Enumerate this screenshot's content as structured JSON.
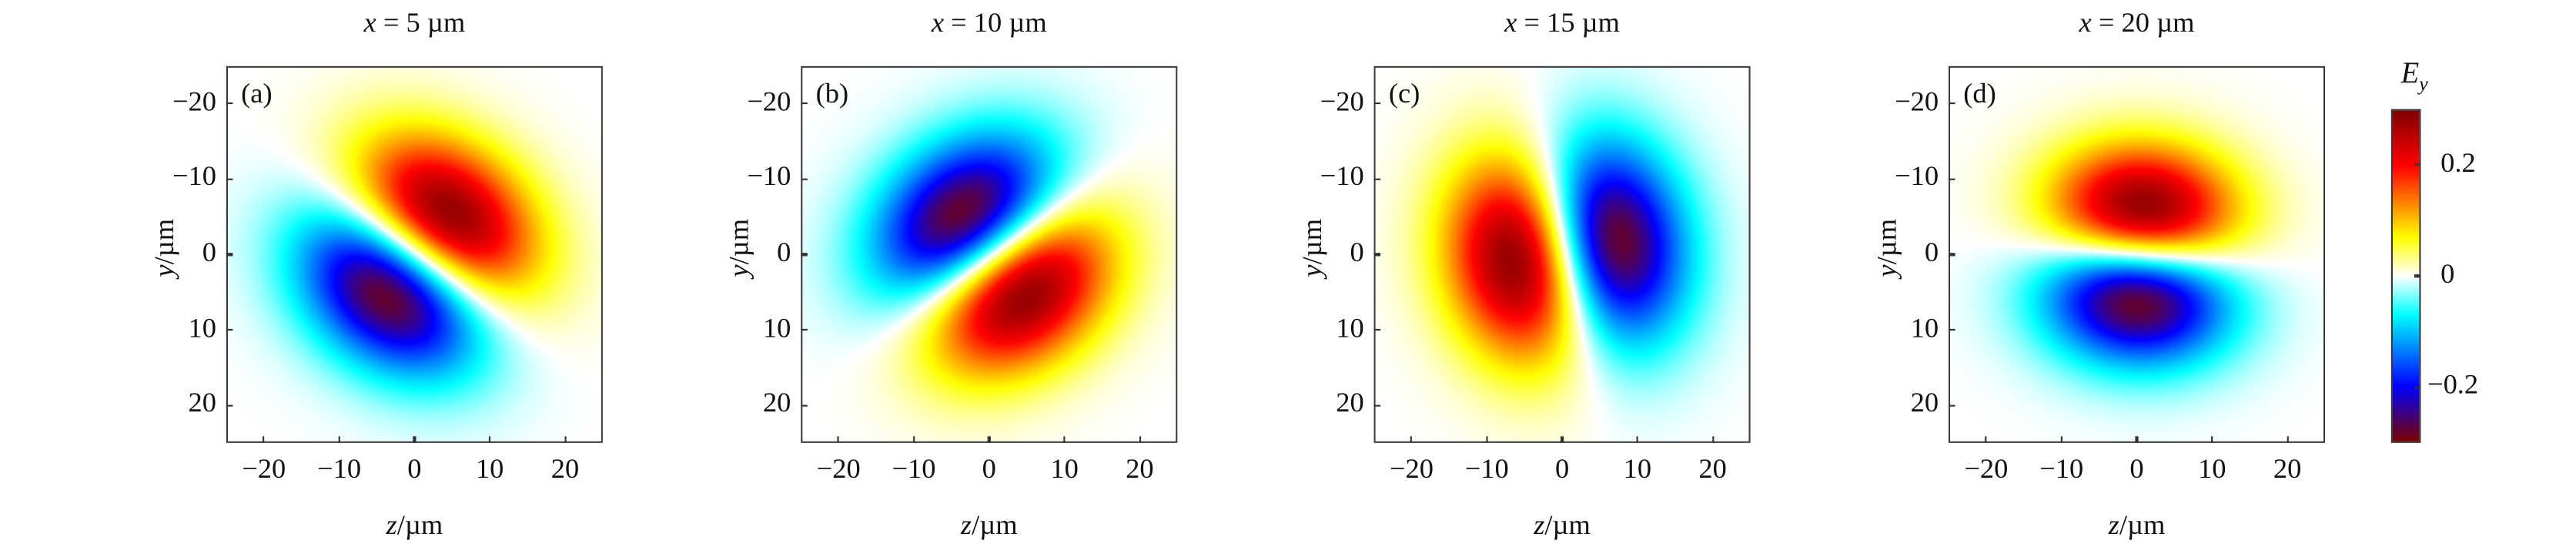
{
  "chart_data": {
    "type": "heatmap",
    "colorbar": {
      "label_var": "E",
      "label_sub": "y",
      "range": [
        -0.3,
        0.3
      ],
      "ticks": [
        0.2,
        0,
        -0.2
      ],
      "tick_labels": [
        "0.2",
        "0",
        "−0.2"
      ],
      "colormap": [
        [
          "-0.3",
          "#7a0000"
        ],
        [
          "-0.2",
          "#0000ff"
        ],
        [
          "-0.07",
          "#00ffff"
        ],
        [
          "0",
          "#ffffff"
        ],
        [
          "0.07",
          "#ffff00"
        ],
        [
          "0.2",
          "#ff0000"
        ],
        [
          "0.3",
          "#800000"
        ]
      ],
      "colormap_note": ""
    },
    "xaxis": {
      "label_var": "z",
      "label_unit": "/µm",
      "range": [
        -25,
        25
      ],
      "ticks": [
        -20,
        -10,
        0,
        10,
        20
      ],
      "tick_labels": [
        "−20",
        "−10",
        "0",
        "10",
        "20"
      ]
    },
    "yaxis": {
      "label_var": "y",
      "label_unit": "/µm",
      "range": [
        -25,
        25
      ],
      "reversed": true,
      "ticks": [
        -20,
        -10,
        0,
        10,
        20
      ],
      "tick_labels": [
        "−20",
        "−10",
        "0",
        "10",
        "20"
      ]
    },
    "panels": [
      {
        "title_var": "x",
        "title_rest": " = 5 µm",
        "label": "(a)",
        "positive_peak": {
          "z": 5,
          "y": -6,
          "value": 0.28
        },
        "negative_peak": {
          "z": -4,
          "y": 6,
          "value": -0.28
        }
      },
      {
        "title_var": "x",
        "title_rest": " = 10 µm",
        "label": "(b)",
        "positive_peak": {
          "z": 5,
          "y": 6,
          "value": 0.28
        },
        "negative_peak": {
          "z": -4,
          "y": -6,
          "value": -0.28
        }
      },
      {
        "title_var": "x",
        "title_rest": " = 15 µm",
        "label": "(c)",
        "positive_peak": {
          "z": -7,
          "y": 1,
          "value": 0.28
        },
        "negative_peak": {
          "z": 8,
          "y": -2,
          "value": -0.28
        }
      },
      {
        "title_var": "x",
        "title_rest": " = 20 µm",
        "label": "(d)",
        "positive_peak": {
          "z": 1,
          "y": -7,
          "value": 0.28
        },
        "negative_peak": {
          "z": 0,
          "y": 7,
          "value": -0.28
        }
      }
    ]
  }
}
